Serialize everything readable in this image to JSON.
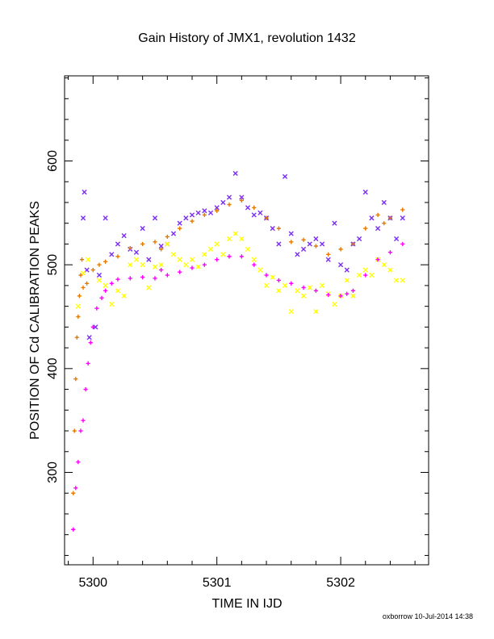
{
  "chart_data": {
    "type": "scatter",
    "title": "Gain History of JMX1, revolution 1432",
    "xlabel": "TIME IN IJD",
    "ylabel": "POSITION OF Cd CALIBRATION PEAKS",
    "xlim": [
      5299.77,
      5302.71
    ],
    "ylim": [
      211,
      682
    ],
    "xticks": [
      5300,
      5301,
      5302
    ],
    "xtick_labels": [
      "5300",
      "5301",
      "5302"
    ],
    "yticks": [
      300,
      400,
      500,
      600
    ],
    "ytick_labels": [
      "300",
      "400",
      "500",
      "600"
    ],
    "grid": false,
    "legend": "none",
    "series": [
      {
        "color": "#7b2cf5",
        "marker": "x",
        "x": [
          5299.92,
          5299.93,
          5299.95,
          5299.97,
          5300.02,
          5300.05,
          5300.1,
          5300.15,
          5300.2,
          5300.25,
          5300.3,
          5300.35,
          5300.4,
          5300.45,
          5300.5,
          5300.55,
          5300.6,
          5300.65,
          5300.7,
          5300.75,
          5300.8,
          5300.85,
          5300.9,
          5300.95,
          5301.0,
          5301.05,
          5301.1,
          5301.15,
          5301.2,
          5301.25,
          5301.3,
          5301.35,
          5301.4,
          5301.45,
          5301.5,
          5301.55,
          5301.6,
          5301.65,
          5301.7,
          5301.75,
          5301.8,
          5301.85,
          5301.9,
          5301.95,
          5302.0,
          5302.05,
          5302.1,
          5302.15,
          5302.2,
          5302.25,
          5302.3,
          5302.35,
          5302.4,
          5302.45,
          5302.5
        ],
        "y": [
          545,
          570,
          495,
          430,
          440,
          490,
          545,
          510,
          520,
          528,
          515,
          512,
          535,
          505,
          545,
          518,
          520,
          530,
          540,
          545,
          548,
          550,
          552,
          550,
          555,
          560,
          565,
          588,
          565,
          555,
          548,
          550,
          545,
          535,
          520,
          585,
          530,
          510,
          515,
          520,
          525,
          520,
          505,
          540,
          500,
          495,
          520,
          525,
          570,
          545,
          535,
          560,
          545,
          525,
          545
        ]
      },
      {
        "color": "#ffff00",
        "marker": "x",
        "x": [
          5299.88,
          5299.92,
          5299.96,
          5300.05,
          5300.1,
          5300.15,
          5300.2,
          5300.25,
          5300.3,
          5300.35,
          5300.4,
          5300.45,
          5300.5,
          5300.55,
          5300.6,
          5300.65,
          5300.7,
          5300.75,
          5300.8,
          5300.85,
          5300.9,
          5300.95,
          5301.0,
          5301.05,
          5301.1,
          5301.15,
          5301.2,
          5301.25,
          5301.3,
          5301.35,
          5301.4,
          5301.45,
          5301.5,
          5301.55,
          5301.6,
          5301.65,
          5301.7,
          5301.75,
          5301.8,
          5301.85,
          5301.9,
          5301.95,
          5302.0,
          5302.05,
          5302.1,
          5302.15,
          5302.2,
          5302.25,
          5302.3,
          5302.35,
          5302.4,
          5302.45,
          5302.5
        ],
        "y": [
          460,
          492,
          505,
          485,
          480,
          462,
          475,
          470,
          500,
          505,
          500,
          478,
          498,
          500,
          520,
          510,
          505,
          500,
          505,
          498,
          510,
          515,
          520,
          510,
          525,
          530,
          525,
          515,
          505,
          495,
          480,
          488,
          475,
          480,
          455,
          475,
          470,
          478,
          455,
          480,
          472,
          462,
          470,
          485,
          470,
          490,
          495,
          490,
          505,
          500,
          495,
          485,
          485
        ]
      },
      {
        "color": "#e67a00",
        "marker": "+",
        "x": [
          5299.84,
          5299.85,
          5299.86,
          5299.87,
          5299.88,
          5299.89,
          5299.9,
          5299.91,
          5299.92,
          5299.95,
          5300.0,
          5300.05,
          5300.1,
          5300.2,
          5300.3,
          5300.4,
          5300.5,
          5300.55,
          5300.6,
          5300.7,
          5300.8,
          5300.9,
          5301.0,
          5301.1,
          5301.2,
          5301.3,
          5301.4,
          5301.5,
          5301.6,
          5301.7,
          5301.8,
          5301.9,
          5302.0,
          5302.1,
          5302.2,
          5302.3,
          5302.35,
          5302.4,
          5302.5
        ],
        "y": [
          280,
          340,
          390,
          430,
          450,
          470,
          490,
          505,
          478,
          482,
          495,
          500,
          503,
          508,
          516,
          520,
          522,
          515,
          527,
          535,
          542,
          548,
          552,
          558,
          562,
          555,
          545,
          535,
          522,
          524,
          518,
          510,
          515,
          520,
          535,
          548,
          540,
          545,
          553
        ]
      },
      {
        "color": "#ff00ff",
        "marker": "+",
        "x": [
          5299.84,
          5299.86,
          5299.88,
          5299.9,
          5299.92,
          5299.94,
          5299.96,
          5299.98,
          5300.0,
          5300.03,
          5300.07,
          5300.1,
          5300.15,
          5300.2,
          5300.3,
          5300.4,
          5300.5,
          5300.55,
          5300.6,
          5300.7,
          5300.8,
          5300.9,
          5301.0,
          5301.1,
          5301.2,
          5301.3,
          5301.4,
          5301.5,
          5301.6,
          5301.7,
          5301.8,
          5301.9,
          5302.0,
          5302.05,
          5302.1,
          5302.2,
          5302.3,
          5302.4,
          5302.5
        ],
        "y": [
          245,
          285,
          310,
          340,
          350,
          380,
          405,
          425,
          440,
          458,
          468,
          475,
          482,
          486,
          487,
          488,
          487,
          495,
          490,
          493,
          497,
          500,
          505,
          508,
          508,
          500,
          490,
          485,
          482,
          478,
          475,
          471,
          470,
          472,
          475,
          490,
          505,
          512,
          520
        ]
      }
    ],
    "footer": "oxborrow 10-Jul-2014 14:38"
  }
}
